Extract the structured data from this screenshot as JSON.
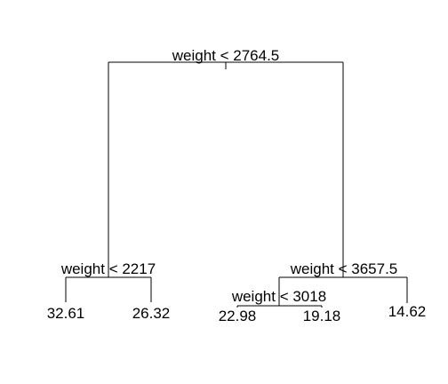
{
  "tree": {
    "root": {
      "split": "weight < 2764.5",
      "left": {
        "split": "weight < 2217",
        "left": {
          "leaf": "32.61"
        },
        "right": {
          "leaf": "26.32"
        }
      },
      "right": {
        "split": "weight < 3657.5",
        "left": {
          "split": "weight < 3018",
          "left": {
            "leaf": "22.98"
          },
          "right": {
            "leaf": "19.18"
          }
        },
        "right": {
          "leaf": "14.62"
        }
      }
    }
  }
}
